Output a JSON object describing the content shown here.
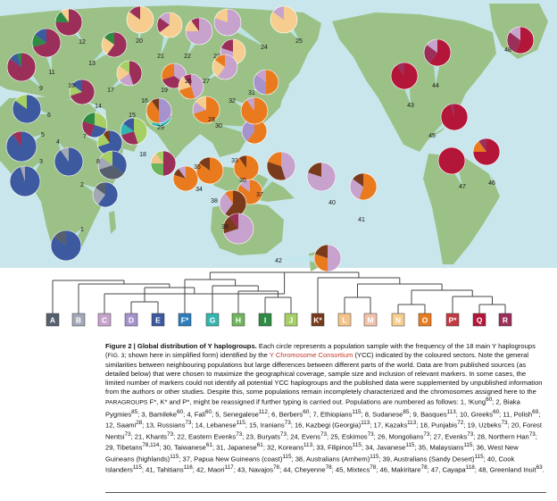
{
  "colors": {
    "ocean": "#c9e6ec",
    "land": "#9cc187",
    "A": "#555f6e",
    "B": "#a3a8b6",
    "C": "#c7a2cc",
    "D": "#a692cc",
    "E": "#3d5aa0",
    "F": "#2d7dbb",
    "G": "#33b5b0",
    "H": "#6fb55c",
    "I": "#2f8b44",
    "J": "#a6cf66",
    "K": "#7a3b1c",
    "L": "#f4c48b",
    "M": "#f2c2ab",
    "N": "#f6cd8e",
    "O": "#ea7a1e",
    "P": "#c23a42",
    "Q": "#b4163a",
    "R": "#9b2f5a"
  },
  "haplogroup_labels": [
    "A",
    "B",
    "C",
    "D",
    "E",
    "F*",
    "G",
    "H",
    "I",
    "J",
    "K*",
    "L",
    "M",
    "N",
    "O",
    "P*",
    "Q",
    "R"
  ],
  "haplogroup_keys": [
    "A",
    "B",
    "C",
    "D",
    "E",
    "F",
    "G",
    "H",
    "I",
    "J",
    "K",
    "L",
    "M",
    "N",
    "O",
    "P",
    "Q",
    "R"
  ],
  "populations": [
    {
      "n": "1",
      "slices": [
        [
          "E",
          0.85
        ],
        [
          "A",
          0.15
        ]
      ]
    },
    {
      "n": "2",
      "slices": [
        [
          "E",
          0.6
        ],
        [
          "B",
          0.25
        ],
        [
          "A",
          0.15
        ]
      ]
    },
    {
      "n": "3",
      "slices": [
        [
          "E",
          0.95
        ],
        [
          "B",
          0.05
        ]
      ]
    },
    {
      "n": "4",
      "slices": [
        [
          "E",
          0.9
        ],
        [
          "B",
          0.1
        ]
      ]
    },
    {
      "n": "5",
      "slices": [
        [
          "E",
          0.9
        ],
        [
          "R",
          0.1
        ]
      ]
    },
    {
      "n": "6",
      "slices": [
        [
          "E",
          0.85
        ],
        [
          "J",
          0.15
        ]
      ]
    },
    {
      "n": "7",
      "slices": [
        [
          "E",
          0.7
        ],
        [
          "J",
          0.2
        ],
        [
          "K",
          0.1
        ]
      ]
    },
    {
      "n": "8",
      "slices": [
        [
          "E",
          0.35
        ],
        [
          "A",
          0.35
        ],
        [
          "B",
          0.15
        ],
        [
          "J",
          0.15
        ]
      ]
    },
    {
      "n": "9",
      "slices": [
        [
          "R",
          0.85
        ],
        [
          "E",
          0.1
        ],
        [
          "I",
          0.05
        ]
      ]
    },
    {
      "n": "10",
      "slices": [
        [
          "R",
          0.7
        ],
        [
          "J",
          0.15
        ],
        [
          "E",
          0.15
        ]
      ]
    },
    {
      "n": "11",
      "slices": [
        [
          "R",
          0.7
        ],
        [
          "I",
          0.15
        ],
        [
          "E",
          0.15
        ]
      ]
    },
    {
      "n": "12",
      "slices": [
        [
          "R",
          0.75
        ],
        [
          "I",
          0.15
        ],
        [
          "N",
          0.1
        ]
      ]
    },
    {
      "n": "13",
      "slices": [
        [
          "R",
          0.6
        ],
        [
          "N",
          0.25
        ],
        [
          "I",
          0.15
        ]
      ]
    },
    {
      "n": "14",
      "slices": [
        [
          "J",
          0.3
        ],
        [
          "E",
          0.25
        ],
        [
          "R",
          0.25
        ],
        [
          "I",
          0.2
        ]
      ]
    },
    {
      "n": "15",
      "slices": [
        [
          "J",
          0.45
        ],
        [
          "R",
          0.25
        ],
        [
          "G",
          0.15
        ],
        [
          "E",
          0.15
        ]
      ]
    },
    {
      "n": "16",
      "slices": [
        [
          "R",
          0.3
        ],
        [
          "G",
          0.3
        ],
        [
          "J",
          0.2
        ],
        [
          "I",
          0.2
        ]
      ]
    },
    {
      "n": "17",
      "slices": [
        [
          "R",
          0.45
        ],
        [
          "C",
          0.2
        ],
        [
          "N",
          0.2
        ],
        [
          "J",
          0.15
        ]
      ]
    },
    {
      "n": "18",
      "slices": [
        [
          "R",
          0.5
        ],
        [
          "H",
          0.25
        ],
        [
          "L",
          0.15
        ],
        [
          "J",
          0.1
        ]
      ]
    },
    {
      "n": "19",
      "slices": [
        [
          "C",
          0.35
        ],
        [
          "R",
          0.35
        ],
        [
          "O",
          0.3
        ]
      ]
    },
    {
      "n": "20",
      "slices": [
        [
          "N",
          0.85
        ],
        [
          "R",
          0.15
        ]
      ]
    },
    {
      "n": "21",
      "slices": [
        [
          "N",
          0.65
        ],
        [
          "R",
          0.2
        ],
        [
          "C",
          0.15
        ]
      ]
    },
    {
      "n": "22",
      "slices": [
        [
          "C",
          0.75
        ],
        [
          "N",
          0.15
        ],
        [
          "R",
          0.1
        ]
      ]
    },
    {
      "n": "23",
      "slices": [
        [
          "N",
          0.5
        ],
        [
          "C",
          0.3
        ],
        [
          "R",
          0.2
        ]
      ]
    },
    {
      "n": "24",
      "slices": [
        [
          "C",
          0.8
        ],
        [
          "N",
          0.2
        ]
      ]
    },
    {
      "n": "25",
      "slices": [
        [
          "N",
          0.85
        ],
        [
          "C",
          0.15
        ]
      ]
    },
    {
      "n": "26",
      "slices": [
        [
          "C",
          0.45
        ],
        [
          "O",
          0.25
        ],
        [
          "N",
          0.2
        ],
        [
          "R",
          0.1
        ]
      ]
    },
    {
      "n": "27",
      "slices": [
        [
          "C",
          0.6
        ],
        [
          "N",
          0.25
        ],
        [
          "O",
          0.15
        ]
      ]
    },
    {
      "n": "28",
      "slices": [
        [
          "O",
          0.7
        ],
        [
          "C",
          0.15
        ],
        [
          "N",
          0.15
        ]
      ]
    },
    {
      "n": "29",
      "slices": [
        [
          "D",
          0.5
        ],
        [
          "O",
          0.4
        ],
        [
          "K",
          0.1
        ]
      ]
    },
    {
      "n": "30",
      "slices": [
        [
          "O",
          0.6
        ],
        [
          "D",
          0.4
        ]
      ]
    },
    {
      "n": "31",
      "slices": [
        [
          "O",
          0.5
        ],
        [
          "D",
          0.35
        ],
        [
          "C",
          0.15
        ]
      ]
    },
    {
      "n": "32",
      "slices": [
        [
          "O",
          0.9
        ],
        [
          "C",
          0.1
        ]
      ]
    },
    {
      "n": "33",
      "slices": [
        [
          "O",
          0.9
        ],
        [
          "K",
          0.1
        ]
      ]
    },
    {
      "n": "34",
      "slices": [
        [
          "O",
          0.8
        ],
        [
          "K",
          0.1
        ],
        [
          "C",
          0.1
        ]
      ]
    },
    {
      "n": "35",
      "slices": [
        [
          "O",
          0.85
        ],
        [
          "K",
          0.15
        ]
      ]
    },
    {
      "n": "36",
      "slices": [
        [
          "O",
          0.85
        ],
        [
          "C",
          0.15
        ]
      ]
    },
    {
      "n": "37",
      "slices": [
        [
          "C",
          0.45
        ],
        [
          "K",
          0.35
        ],
        [
          "O",
          0.2
        ]
      ]
    },
    {
      "n": "38",
      "slices": [
        [
          "K",
          0.6
        ],
        [
          "C",
          0.3
        ],
        [
          "O",
          0.1
        ]
      ]
    },
    {
      "n": "39",
      "slices": [
        [
          "C",
          0.7
        ],
        [
          "K",
          0.2
        ],
        [
          "R",
          0.1
        ]
      ]
    },
    {
      "n": "40",
      "slices": [
        [
          "C",
          0.8
        ],
        [
          "K",
          0.2
        ]
      ]
    },
    {
      "n": "41",
      "slices": [
        [
          "O",
          0.55
        ],
        [
          "C",
          0.3
        ],
        [
          "K",
          0.15
        ]
      ]
    },
    {
      "n": "42",
      "slices": [
        [
          "C",
          0.5
        ],
        [
          "O",
          0.3
        ],
        [
          "K",
          0.2
        ]
      ]
    },
    {
      "n": "43",
      "slices": [
        [
          "Q",
          0.9
        ],
        [
          "R",
          0.1
        ]
      ]
    },
    {
      "n": "44",
      "slices": [
        [
          "Q",
          0.6
        ],
        [
          "R",
          0.25
        ],
        [
          "C",
          0.15
        ]
      ]
    },
    {
      "n": "45",
      "slices": [
        [
          "Q",
          0.95
        ],
        [
          "R",
          0.05
        ]
      ]
    },
    {
      "n": "46",
      "slices": [
        [
          "Q",
          0.75
        ],
        [
          "O",
          0.15
        ],
        [
          "R",
          0.1
        ]
      ]
    },
    {
      "n": "47",
      "slices": [
        [
          "Q",
          1.0
        ]
      ]
    },
    {
      "n": "48",
      "slices": [
        [
          "Q",
          0.55
        ],
        [
          "R",
          0.3
        ],
        [
          "C",
          0.15
        ]
      ]
    }
  ],
  "caption": {
    "fig": "Figure 2 |",
    "title": "Global distribution of Y haplogroups.",
    "t1": " Each circle represents a population sample with the frequency of the 18 main Y haplogroups (",
    "figref": "FIG. 3",
    "t2": "; shown here in simplified form) identified by the ",
    "ycc": "Y Chromosome Consortium",
    "t3": " (YCC) indicated by the coloured sectors. Note the general similarities between neighbouring populations but large differences between different parts of the world. Data are from published sources (as detailed below) that were chosen to maximize the geographical coverage, sample size and inclusion of relevant markers. In some cases, the limited number of markers could not identify all potential YCC haplogroups and the published data were supplemented by unpublished information from the authors or other studies. Despite this, some populations remain incompletely characterized and the chromosomes assigned here to the ",
    "paragroups": "PARAGROUPS",
    "t4": " F*, K* and P*, might be reassigned if further typing is carried out. Populations are numbered as follows: 1, !Kung",
    "t5": "; 2, Biaka Pygmies",
    "t6": "; 3, Bamileke",
    "t7": "; 4, Fali",
    "t8": "; 5, Senegalese",
    "t9": "; 6, Berbers",
    "t10": "; 7, Ethiopians",
    "t11": "; 8, Sudanese",
    "t12": "; 9, Basques",
    "t13": "; 10, Greeks",
    "t14": "; 11, Polish",
    "t15": "; 12, Saami",
    "t16": "; 13, Russians",
    "t17": "; 14, Lebanese",
    "t18": "; 15, Iranians",
    "t19": "; 16, Kazbegi (Georgia)",
    "t20": "; 17, Kazaks",
    "t21": "; 18, Punjabis",
    "t22": "; 19, Uzbeks",
    "t23": "; 20, Forest Nentsi",
    "t24": "; 21, Khants",
    "t25": "; 22, Eastern Evenks",
    "t26": "; 23, Buryats",
    "t27": "; 24, Evens",
    "t28": "; 25, Eskimos",
    "t29": "; 26, Mongolians",
    "t30": "; 27, Evenks",
    "t31": "; 28, Northern Han",
    "t32": "; 29, Tibetans",
    "t33": "; 30, Taiwanese",
    "t34": "; 31, Japanese",
    "t35": "; 32, Koreans",
    "t36": "; 33, Filipinos",
    "t37": "; 34, Javanese",
    "t38": "; 35, Malaysians",
    "t39": "; 36, West New Guineans (highlands)",
    "t40": "; 37, Papua New Guineans (coast)",
    "t41": "; 38, Australians (Arnhem)",
    "t42": "; 39, Australians (Sandy Desert)",
    "t43": "; 40, Cook Islanders",
    "t44": "; 41, Tahitians",
    "t45": "; 42, Maori",
    "t46": "; 43, Navajos",
    "t47": "; 44, Cheyenne",
    "t48": "; 45, Mixtecs",
    "t49": "; 46, Makiritare",
    "t50": "; 47, Cayapa",
    "t51": "; 48, Greenland Inuit",
    "t52": ".",
    "refs": [
      "60",
      "85",
      "60",
      "60",
      "112",
      "60",
      "115",
      "85",
      "113",
      "60",
      "69",
      "28",
      "73",
      "115",
      "73",
      "113",
      "113",
      "72",
      "73",
      "73",
      "73",
      "73",
      "73",
      "73",
      "73",
      "73",
      "73",
      "73",
      "78,114",
      "61",
      "61",
      "113",
      "115",
      "115",
      "115",
      "115",
      "115",
      "115",
      "115",
      "115",
      "116",
      "117",
      "78",
      "78",
      "78",
      "78",
      "118",
      "63"
    ]
  }
}
